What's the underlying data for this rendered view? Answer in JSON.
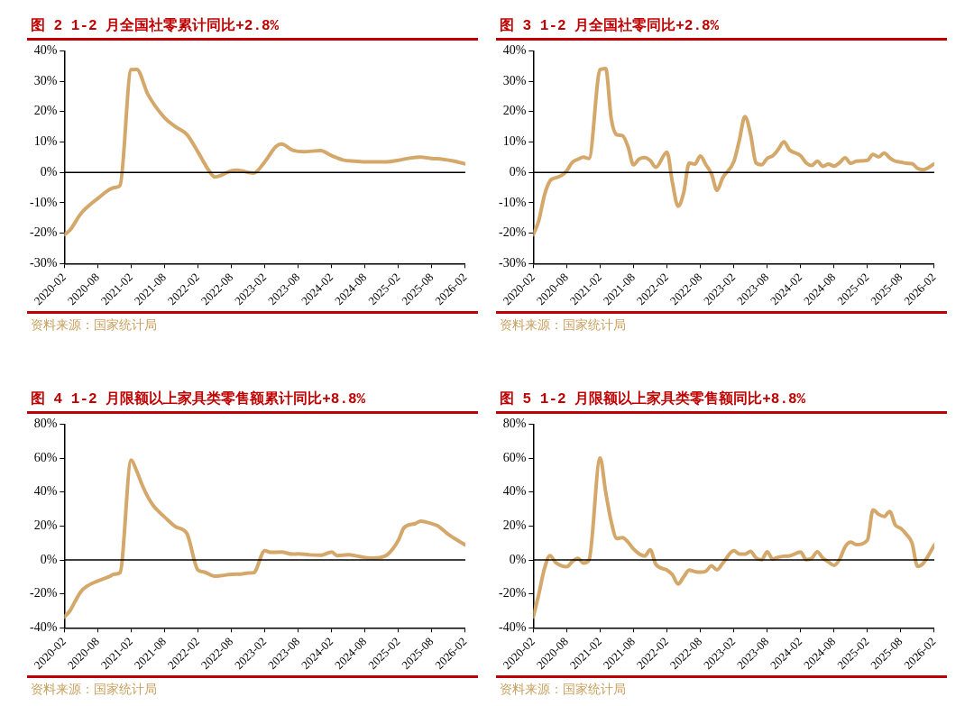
{
  "chart_data": [
    {
      "type": "line",
      "title": "图 2 1-2 月全国社零累计同比+2.8%",
      "annotations": [
        "资料来源：国家统计局"
      ],
      "color": "#d4a86a",
      "marker": "none",
      "x": [
        "2020-02",
        "2020-03",
        "2020-05",
        "2020-08",
        "2020-11",
        "2020-12",
        "2021-02",
        "2021-03",
        "2021-05",
        "2021-08",
        "2021-10",
        "2021-12",
        "2022-02",
        "2022-04",
        "2022-05",
        "2022-08",
        "2022-09",
        "2022-12",
        "2023-02",
        "2023-04",
        "2023-05",
        "2023-07",
        "2023-09",
        "2023-12",
        "2024-02",
        "2024-04",
        "2024-06",
        "2024-08",
        "2024-10",
        "2024-12",
        "2025-02",
        "2025-04",
        "2025-06",
        "2025-08",
        "2025-10",
        "2025-12",
        "2026-02"
      ],
      "values": [
        -20.5,
        -19,
        -13.5,
        -8.6,
        -5,
        -4.3,
        33.8,
        33.9,
        25.7,
        18,
        15,
        12.5,
        6.7,
        0.5,
        -1.5,
        0.5,
        0.7,
        -0.2,
        3.5,
        8.5,
        9.3,
        7.3,
        6.8,
        7.2,
        5.5,
        4.1,
        3.7,
        3.5,
        3.5,
        3.5,
        4.0,
        4.7,
        5.0,
        4.6,
        4.3,
        3.7,
        2.8
      ],
      "xlim": [
        "2020-02",
        "2026-02"
      ],
      "xticks": [
        "2020-02",
        "2020-08",
        "2021-02",
        "2021-08",
        "2022-02",
        "2022-08",
        "2023-02",
        "2023-08",
        "2024-02",
        "2024-08",
        "2025-02",
        "2025-08",
        "2026-02"
      ],
      "ylim": [
        -30,
        40
      ],
      "yticks": [
        {
          "value": -30,
          "label": "-30%"
        },
        {
          "value": -20,
          "label": "-20%"
        },
        {
          "value": -10,
          "label": "-10%"
        },
        {
          "value": 0,
          "label": "0%"
        },
        {
          "value": 10,
          "label": "10%"
        },
        {
          "value": 20,
          "label": "20%"
        },
        {
          "value": 30,
          "label": "30%"
        },
        {
          "value": 40,
          "label": "40%"
        }
      ],
      "ref_lines": [
        {
          "axis": "y",
          "value": 0,
          "color": "#000000"
        }
      ]
    },
    {
      "type": "line",
      "title": "图 3 1-2 月全国社零同比+2.8%",
      "annotations": [
        "资料来源：国家统计局"
      ],
      "color": "#d4a86a",
      "marker": "none",
      "x": [
        "2020-02",
        "2020-03",
        "2020-04",
        "2020-05",
        "2020-06",
        "2020-07",
        "2020-08",
        "2020-09",
        "2020-10",
        "2020-11",
        "2020-12",
        "2021-02",
        "2021-03",
        "2021-04",
        "2021-05",
        "2021-06",
        "2021-07",
        "2021-08",
        "2021-09",
        "2021-10",
        "2021-11",
        "2021-12",
        "2022-02",
        "2022-03",
        "2022-04",
        "2022-05",
        "2022-06",
        "2022-07",
        "2022-08",
        "2022-09",
        "2022-10",
        "2022-11",
        "2022-12",
        "2023-02",
        "2023-03",
        "2023-04",
        "2023-05",
        "2023-06",
        "2023-07",
        "2023-08",
        "2023-09",
        "2023-10",
        "2023-11",
        "2023-12",
        "2024-02",
        "2024-03",
        "2024-04",
        "2024-05",
        "2024-06",
        "2024-07",
        "2024-08",
        "2024-09",
        "2024-10",
        "2024-11",
        "2024-12",
        "2025-02",
        "2025-03",
        "2025-04",
        "2025-05",
        "2025-06",
        "2025-07",
        "2025-08",
        "2025-09",
        "2025-10",
        "2025-11",
        "2025-12",
        "2026-02"
      ],
      "values": [
        -20.5,
        -15.8,
        -7.5,
        -2.8,
        -1.8,
        -1.1,
        0.5,
        3.3,
        4.3,
        5,
        4.6,
        33.8,
        34.2,
        17.7,
        12.4,
        12.1,
        8.5,
        2.5,
        4.4,
        4.9,
        3.9,
        1.7,
        6.7,
        -3.5,
        -11.1,
        -6.7,
        3.1,
        2.7,
        5.4,
        2.5,
        -0.5,
        -5.9,
        -1.8,
        3.5,
        10.6,
        18.4,
        12.7,
        3.1,
        2.5,
        4.6,
        5.5,
        7.6,
        10.1,
        7.4,
        5.5,
        3.1,
        2.3,
        3.7,
        2.0,
        2.7,
        2.1,
        3.2,
        4.8,
        3.0,
        3.7,
        4.0,
        5.9,
        5.1,
        6.4,
        4.8,
        3.7,
        3.4,
        3.0,
        2.9,
        1.3,
        0.9,
        2.8
      ],
      "xlim": [
        "2020-02",
        "2026-02"
      ],
      "xticks": [
        "2020-02",
        "2020-08",
        "2021-02",
        "2021-08",
        "2022-02",
        "2022-08",
        "2023-02",
        "2023-08",
        "2024-02",
        "2024-08",
        "2025-02",
        "2025-08",
        "2026-02"
      ],
      "ylim": [
        -30,
        40
      ],
      "yticks": [
        {
          "value": -30,
          "label": "-30%"
        },
        {
          "value": -20,
          "label": "-20%"
        },
        {
          "value": -10,
          "label": "-10%"
        },
        {
          "value": 0,
          "label": "0%"
        },
        {
          "value": 10,
          "label": "10%"
        },
        {
          "value": 20,
          "label": "20%"
        },
        {
          "value": 30,
          "label": "30%"
        },
        {
          "value": 40,
          "label": "40%"
        }
      ],
      "ref_lines": [
        {
          "axis": "y",
          "value": 0,
          "color": "#000000"
        }
      ]
    },
    {
      "type": "line",
      "title": "图 4 1-2 月限额以上家具类零售额累计同比+8.8%",
      "annotations": [
        "资料来源：国家统计局"
      ],
      "color": "#d4a86a",
      "marker": "none",
      "x": [
        "2020-02",
        "2020-03",
        "2020-04",
        "2020-05",
        "2020-06",
        "2020-08",
        "2020-10",
        "2020-11",
        "2020-12",
        "2021-02",
        "2021-03",
        "2021-04",
        "2021-05",
        "2021-06",
        "2021-07",
        "2021-08",
        "2021-10",
        "2021-12",
        "2022-02",
        "2022-03",
        "2022-05",
        "2022-06",
        "2022-08",
        "2022-10",
        "2022-11",
        "2022-12",
        "2023-02",
        "2023-03",
        "2023-05",
        "2023-07",
        "2023-08",
        "2023-10",
        "2023-12",
        "2024-02",
        "2024-03",
        "2024-05",
        "2024-07",
        "2024-09",
        "2024-10",
        "2024-12",
        "2025-02",
        "2025-03",
        "2025-05",
        "2025-06",
        "2025-08",
        "2025-09",
        "2025-11",
        "2026-02"
      ],
      "values": [
        -33.6,
        -30,
        -24,
        -18.6,
        -15.6,
        -12.4,
        -9.9,
        -8.4,
        -7.5,
        58.9,
        52.3,
        44,
        37.1,
        31.9,
        28.4,
        25.3,
        19.5,
        15.6,
        -6.0,
        -7,
        -9.6,
        -9.3,
        -8.5,
        -8.2,
        -7.7,
        -7.5,
        5.5,
        4.5,
        4.6,
        3.4,
        3.6,
        3.0,
        2.8,
        4.6,
        2.6,
        3.1,
        2.0,
        1.1,
        1.2,
        3.1,
        11.7,
        19.0,
        21.4,
        22.9,
        21.3,
        20.2,
        14.9,
        8.8
      ],
      "xlim": [
        "2020-02",
        "2026-02"
      ],
      "xticks": [
        "2020-02",
        "2020-08",
        "2021-02",
        "2021-08",
        "2022-02",
        "2022-08",
        "2023-02",
        "2023-08",
        "2024-02",
        "2024-08",
        "2025-02",
        "2025-08",
        "2026-02"
      ],
      "ylim": [
        -40,
        80
      ],
      "yticks": [
        {
          "value": -40,
          "label": "-40%"
        },
        {
          "value": -20,
          "label": "-20%"
        },
        {
          "value": 0,
          "label": "0%"
        },
        {
          "value": 20,
          "label": "20%"
        },
        {
          "value": 40,
          "label": "40%"
        },
        {
          "value": 60,
          "label": "60%"
        },
        {
          "value": 80,
          "label": "80%"
        }
      ],
      "ref_lines": [
        {
          "axis": "y",
          "value": 0,
          "color": "#000000"
        }
      ]
    },
    {
      "type": "line",
      "title": "图 5 1-2 月限额以上家具类零售额同比+8.8%",
      "annotations": [
        "资料来源：国家统计局"
      ],
      "color": "#d4a86a",
      "marker": "none",
      "x": [
        "2020-02",
        "2020-03",
        "2020-04",
        "2020-05",
        "2020-06",
        "2020-07",
        "2020-08",
        "2020-09",
        "2020-10",
        "2020-11",
        "2020-12",
        "2021-02",
        "2021-03",
        "2021-04",
        "2021-05",
        "2021-06",
        "2021-07",
        "2021-08",
        "2021-09",
        "2021-10",
        "2021-11",
        "2021-12",
        "2022-02",
        "2022-03",
        "2022-04",
        "2022-05",
        "2022-06",
        "2022-07",
        "2022-08",
        "2022-09",
        "2022-10",
        "2022-11",
        "2022-12",
        "2023-02",
        "2023-03",
        "2023-04",
        "2023-05",
        "2023-06",
        "2023-07",
        "2023-08",
        "2023-09",
        "2023-10",
        "2023-11",
        "2023-12",
        "2024-02",
        "2024-03",
        "2024-04",
        "2024-05",
        "2024-06",
        "2024-07",
        "2024-08",
        "2024-09",
        "2024-10",
        "2024-11",
        "2024-12",
        "2025-02",
        "2025-03",
        "2025-04",
        "2025-05",
        "2025-06",
        "2025-07",
        "2025-08",
        "2025-09",
        "2025-10",
        "2025-11",
        "2025-12",
        "2026-02"
      ],
      "values": [
        -33.6,
        -20,
        -5.2,
        2.6,
        -1.5,
        -3.4,
        -4.0,
        -1,
        1.0,
        -1.8,
        -0.2,
        60,
        40,
        22.5,
        12.6,
        13.2,
        10.6,
        6.4,
        3.6,
        2.3,
        6.0,
        -2.6,
        -6.0,
        -8.8,
        -14.2,
        -10,
        -6.0,
        -6.9,
        -7.2,
        -6.6,
        -3.5,
        -5.8,
        -2,
        5.5,
        3.5,
        3.4,
        5.0,
        1.2,
        0.1,
        4.8,
        0.5,
        1.7,
        2.2,
        2.4,
        4.6,
        0.2,
        1.0,
        4.8,
        1.1,
        -1.1,
        -3.2,
        0.4,
        7.8,
        10.5,
        9.0,
        11.7,
        29.5,
        26.9,
        25.6,
        28.6,
        20.6,
        18.6,
        15,
        10,
        -3.8,
        -2,
        8.8
      ],
      "xlim": [
        "2020-02",
        "2026-02"
      ],
      "xticks": [
        "2020-02",
        "2020-08",
        "2021-02",
        "2021-08",
        "2022-02",
        "2022-08",
        "2023-02",
        "2023-08",
        "2024-02",
        "2024-08",
        "2025-02",
        "2025-08",
        "2026-02"
      ],
      "ylim": [
        -40,
        80
      ],
      "yticks": [
        {
          "value": -40,
          "label": "-40%"
        },
        {
          "value": -20,
          "label": "-20%"
        },
        {
          "value": 0,
          "label": "0%"
        },
        {
          "value": 20,
          "label": "20%"
        },
        {
          "value": 40,
          "label": "40%"
        },
        {
          "value": 60,
          "label": "60%"
        },
        {
          "value": 80,
          "label": "80%"
        }
      ],
      "ref_lines": [
        {
          "axis": "y",
          "value": 0,
          "color": "#000000"
        }
      ]
    }
  ]
}
